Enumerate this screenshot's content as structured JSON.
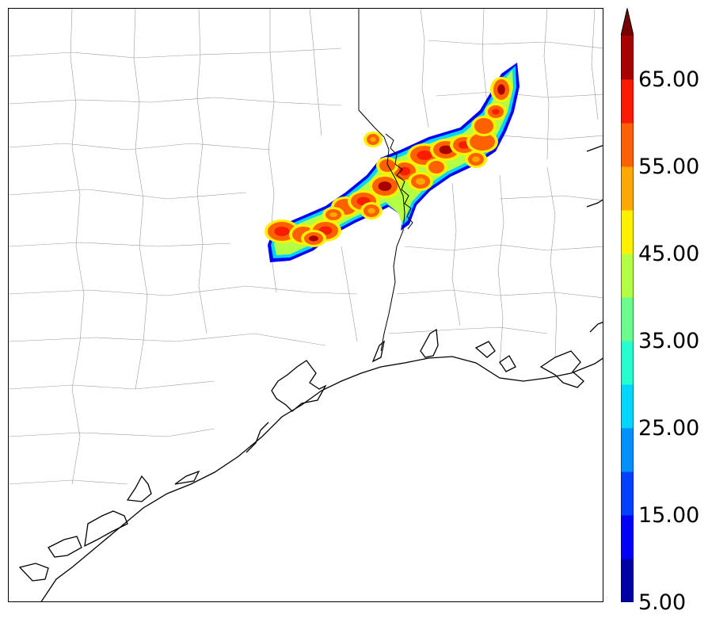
{
  "colorbar": {
    "ticks": [
      "5.00",
      "15.00",
      "25.00",
      "35.00",
      "45.00",
      "55.00",
      "65.00"
    ],
    "tick_values": [
      5,
      15,
      25,
      35,
      45,
      55,
      65
    ],
    "levels": [
      5,
      10,
      15,
      20,
      25,
      30,
      35,
      40,
      45,
      50,
      55,
      60,
      65,
      70
    ],
    "colors": [
      "#0000a8",
      "#0000f5",
      "#0040ff",
      "#0090ff",
      "#00d4ff",
      "#26ffd0",
      "#6aff8c",
      "#b4ff44",
      "#fff000",
      "#ffa800",
      "#ff6000",
      "#f81c00",
      "#a80000"
    ],
    "extend": "max",
    "extend_color": "#7a0000"
  },
  "map": {
    "basemap": "southeast-texas-counties",
    "coast_color": "#000000",
    "county_color": "#9a9a9a",
    "ocean": "Gulf of Mexico"
  }
}
